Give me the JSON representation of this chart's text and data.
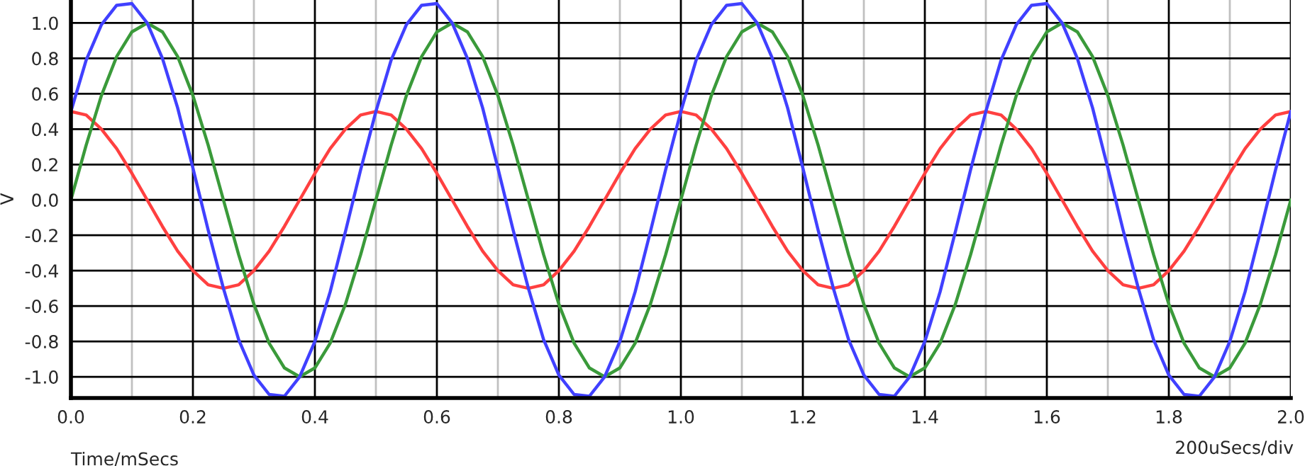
{
  "chart_data": {
    "type": "line",
    "ylabel": "V",
    "xlabel": "Time/mSecs",
    "annotations": [
      "200uSecs/div"
    ],
    "x": [
      0,
      0.025,
      0.05,
      0.075,
      0.1,
      0.125,
      0.15,
      0.175,
      0.2,
      0.225,
      0.25,
      0.275,
      0.3,
      0.325,
      0.35,
      0.375,
      0.4,
      0.425,
      0.45,
      0.475,
      0.5,
      0.525,
      0.55,
      0.575,
      0.6,
      0.625,
      0.65,
      0.675,
      0.7,
      0.725,
      0.75,
      0.775,
      0.8,
      0.825,
      0.85,
      0.875,
      0.9,
      0.925,
      0.95,
      0.975,
      1,
      1.025,
      1.05,
      1.075,
      1.1,
      1.125,
      1.15,
      1.175,
      1.2,
      1.225,
      1.25,
      1.275,
      1.3,
      1.325,
      1.35,
      1.375,
      1.4,
      1.425,
      1.45,
      1.475,
      1.5,
      1.525,
      1.55,
      1.575,
      1.6,
      1.625,
      1.65,
      1.675,
      1.7,
      1.725,
      1.75,
      1.775,
      1.8,
      1.825,
      1.85,
      1.875,
      1.9,
      1.925,
      1.95,
      1.975,
      2
    ],
    "series": [
      {
        "color": "#ff4040",
        "values": [
          0.5,
          0.48,
          0.4,
          0.29,
          0.15,
          0,
          -0.15,
          -0.29,
          -0.4,
          -0.48,
          -0.5,
          -0.48,
          -0.4,
          -0.29,
          -0.15,
          0,
          0.15,
          0.29,
          0.4,
          0.48,
          0.5,
          0.48,
          0.4,
          0.29,
          0.15,
          0,
          -0.15,
          -0.29,
          -0.4,
          -0.48,
          -0.5,
          -0.48,
          -0.4,
          -0.29,
          -0.15,
          0,
          0.15,
          0.29,
          0.4,
          0.48,
          0.5,
          0.48,
          0.4,
          0.29,
          0.15,
          0,
          -0.15,
          -0.29,
          -0.4,
          -0.48,
          -0.5,
          -0.48,
          -0.4,
          -0.29,
          -0.15,
          0,
          0.15,
          0.29,
          0.4,
          0.48,
          0.5,
          0.48,
          0.4,
          0.29,
          0.15,
          0,
          -0.15,
          -0.29,
          -0.4,
          -0.48,
          -0.5,
          -0.48,
          -0.4,
          -0.29,
          -0.15,
          0,
          0.15,
          0.29,
          0.4,
          0.48,
          0.5
        ]
      },
      {
        "color": "#3a9a3a",
        "values": [
          0,
          0.31,
          0.59,
          0.81,
          0.95,
          1,
          0.95,
          0.81,
          0.59,
          0.31,
          0,
          -0.31,
          -0.59,
          -0.81,
          -0.95,
          -1,
          -0.95,
          -0.81,
          -0.59,
          -0.31,
          0,
          0.31,
          0.59,
          0.81,
          0.95,
          1,
          0.95,
          0.81,
          0.59,
          0.31,
          0,
          -0.31,
          -0.59,
          -0.81,
          -0.95,
          -1,
          -0.95,
          -0.81,
          -0.59,
          -0.31,
          0,
          0.31,
          0.59,
          0.81,
          0.95,
          1,
          0.95,
          0.81,
          0.59,
          0.31,
          0,
          -0.31,
          -0.59,
          -0.81,
          -0.95,
          -1,
          -0.95,
          -0.81,
          -0.59,
          -0.31,
          0,
          0.31,
          0.59,
          0.81,
          0.95,
          1,
          0.95,
          0.81,
          0.59,
          0.31,
          0,
          -0.31,
          -0.59,
          -0.81,
          -0.95,
          -1,
          -0.95,
          -0.81,
          -0.59,
          -0.31,
          0
        ]
      },
      {
        "color": "#4040ff",
        "values": [
          0.5,
          0.79,
          0.99,
          1.1,
          1.11,
          1,
          0.8,
          0.52,
          0.18,
          -0.17,
          -0.5,
          -0.79,
          -0.99,
          -1.1,
          -1.11,
          -1,
          -0.8,
          -0.52,
          -0.18,
          0.17,
          0.5,
          0.79,
          0.99,
          1.1,
          1.11,
          1,
          0.8,
          0.52,
          0.18,
          -0.17,
          -0.5,
          -0.79,
          -0.99,
          -1.1,
          -1.11,
          -1,
          -0.8,
          -0.52,
          -0.18,
          0.17,
          0.5,
          0.79,
          0.99,
          1.1,
          1.11,
          1,
          0.8,
          0.52,
          0.18,
          -0.17,
          -0.5,
          -0.79,
          -0.99,
          -1.1,
          -1.11,
          -1,
          -0.8,
          -0.52,
          -0.18,
          0.17,
          0.5,
          0.79,
          0.99,
          1.1,
          1.11,
          1,
          0.8,
          0.52,
          0.18,
          -0.17,
          -0.5,
          -0.79,
          -0.99,
          -1.1,
          -1.11,
          -1,
          -0.8,
          -0.52,
          -0.18,
          0.17,
          0.5
        ]
      }
    ],
    "xlim": [
      0,
      2
    ],
    "ylim": [
      -1.12,
      1.13
    ],
    "xticks": [
      {
        "value": 0,
        "label": "0.0"
      },
      {
        "value": 0.1,
        "label": null
      },
      {
        "value": 0.2,
        "label": "0.2"
      },
      {
        "value": 0.3,
        "label": null
      },
      {
        "value": 0.4,
        "label": "0.4"
      },
      {
        "value": 0.5,
        "label": null
      },
      {
        "value": 0.6,
        "label": "0.6"
      },
      {
        "value": 0.7,
        "label": null
      },
      {
        "value": 0.8,
        "label": "0.8"
      },
      {
        "value": 0.9,
        "label": null
      },
      {
        "value": 1,
        "label": "1.0"
      },
      {
        "value": 1.1,
        "label": null
      },
      {
        "value": 1.2,
        "label": "1.2"
      },
      {
        "value": 1.3,
        "label": null
      },
      {
        "value": 1.4,
        "label": "1.4"
      },
      {
        "value": 1.5,
        "label": null
      },
      {
        "value": 1.6,
        "label": "1.6"
      },
      {
        "value": 1.7,
        "label": null
      },
      {
        "value": 1.8,
        "label": "1.8"
      },
      {
        "value": 1.9,
        "label": null
      },
      {
        "value": 2,
        "label": "2.0"
      }
    ],
    "yticks": [
      {
        "value": -1,
        "label": "-1.0"
      },
      {
        "value": -0.8,
        "label": "-0.8"
      },
      {
        "value": -0.6,
        "label": "-0.6"
      },
      {
        "value": -0.4,
        "label": "-0.4"
      },
      {
        "value": -0.2,
        "label": "-0.2"
      },
      {
        "value": 0,
        "label": "0.0"
      },
      {
        "value": 0.2,
        "label": "0.2"
      },
      {
        "value": 0.4,
        "label": "0.4"
      },
      {
        "value": 0.6,
        "label": "0.6"
      },
      {
        "value": 0.8,
        "label": "0.8"
      },
      {
        "value": 1,
        "label": "1.0"
      }
    ],
    "grid": true,
    "line_style": "solid",
    "marker": "none"
  }
}
